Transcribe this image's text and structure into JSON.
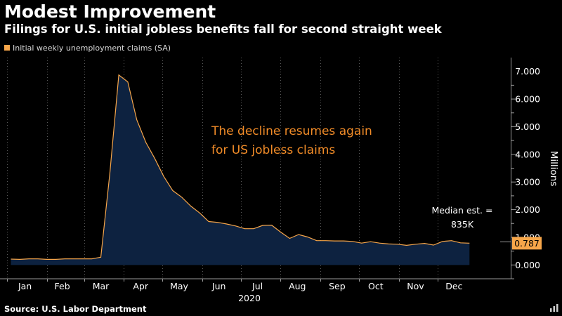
{
  "chart_data": {
    "type": "area",
    "title": "Modest Improvement",
    "subtitle": "Filings for U.S. initial jobless benefits fall for second straight week",
    "legend": [
      "Initial weekly unemployment claims (SA)"
    ],
    "legend_position": "top-left",
    "ylabel": "Millions",
    "ylim": [
      -0.5,
      7.5
    ],
    "yticks": [
      0,
      1,
      2,
      3,
      4,
      5,
      6,
      7
    ],
    "ytick_labels": [
      "0.000",
      "1.000",
      "2.000",
      "3.000",
      "4.000",
      "5.000",
      "6.000",
      "7.000"
    ],
    "x_year_label": "2020",
    "months": [
      "Jan",
      "Feb",
      "Mar",
      "Apr",
      "May",
      "Jun",
      "Jul",
      "Aug",
      "Sep",
      "Oct",
      "Nov",
      "Dec"
    ],
    "grid": "vertical-dotted",
    "series": [
      {
        "name": "Initial weekly unemployment claims (SA)",
        "x": [
          "2020-01-04",
          "2020-01-11",
          "2020-01-18",
          "2020-01-25",
          "2020-02-01",
          "2020-02-08",
          "2020-02-15",
          "2020-02-22",
          "2020-02-29",
          "2020-03-07",
          "2020-03-14",
          "2020-03-21",
          "2020-03-28",
          "2020-04-04",
          "2020-04-11",
          "2020-04-18",
          "2020-04-25",
          "2020-05-02",
          "2020-05-09",
          "2020-05-16",
          "2020-05-23",
          "2020-05-30",
          "2020-06-06",
          "2020-06-13",
          "2020-06-20",
          "2020-06-27",
          "2020-07-04",
          "2020-07-11",
          "2020-07-18",
          "2020-07-25",
          "2020-08-01",
          "2020-08-08",
          "2020-08-15",
          "2020-08-22",
          "2020-08-29",
          "2020-09-05",
          "2020-09-12",
          "2020-09-19",
          "2020-09-26",
          "2020-10-03",
          "2020-10-10",
          "2020-10-17",
          "2020-10-24",
          "2020-10-31",
          "2020-11-07",
          "2020-11-14",
          "2020-11-21",
          "2020-11-28",
          "2020-12-05",
          "2020-12-12",
          "2020-12-19",
          "2020-12-26"
        ],
        "values": [
          0.21,
          0.2,
          0.22,
          0.22,
          0.2,
          0.2,
          0.22,
          0.22,
          0.22,
          0.22,
          0.28,
          3.3,
          6.87,
          6.62,
          5.25,
          4.44,
          3.85,
          3.2,
          2.69,
          2.45,
          2.13,
          1.88,
          1.57,
          1.54,
          1.48,
          1.41,
          1.31,
          1.31,
          1.43,
          1.44,
          1.19,
          0.96,
          1.1,
          1.01,
          0.88,
          0.88,
          0.87,
          0.87,
          0.85,
          0.79,
          0.84,
          0.79,
          0.76,
          0.75,
          0.71,
          0.75,
          0.78,
          0.72,
          0.85,
          0.88,
          0.8,
          0.787
        ]
      }
    ],
    "last_value_label": "0.787",
    "annotations": [
      {
        "text": [
          "The decline resumes again",
          "for US jobless claims"
        ]
      },
      {
        "text": [
          "Median est. =",
          "835K"
        ],
        "value": 0.835
      }
    ],
    "colors": {
      "line": "#f7a64a",
      "fill": "#0d2240",
      "annotation": "#f28c28"
    }
  },
  "source": "Source: U.S. Labor Department",
  "icons": {
    "corner": "chart-icon"
  }
}
